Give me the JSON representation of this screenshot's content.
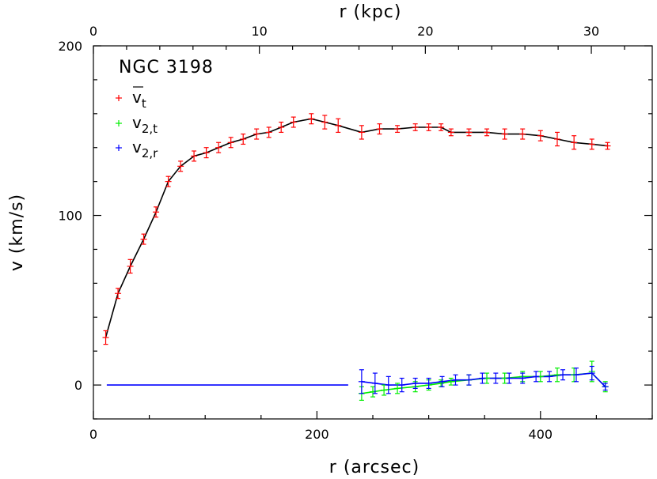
{
  "chart_data": {
    "type": "line",
    "title": "NGC 3198",
    "xlabel": "r (arcsec)",
    "ylabel": "v (km/s)",
    "x2label": "r (kpc)",
    "xlim": [
      0,
      500
    ],
    "ylim": [
      -20,
      200
    ],
    "x2lim": [
      0,
      33.67
    ],
    "xticks": [
      0,
      200,
      400
    ],
    "yticks": [
      0,
      100,
      200
    ],
    "x2ticks": [
      0,
      10,
      20,
      30
    ],
    "xtick_labels": [
      "0",
      "200",
      "400"
    ],
    "ytick_labels": [
      "0",
      "100",
      "200"
    ],
    "x2tick_labels": [
      "0",
      "10",
      "20",
      "30"
    ],
    "legend": {
      "placement": "top-left",
      "entries": [
        {
          "main": "v",
          "sub": "t",
          "overbar": true
        },
        {
          "main": "v",
          "sub": "2,t",
          "overbar": false
        },
        {
          "main": "v",
          "sub": "2,r",
          "overbar": false
        }
      ]
    },
    "colors": {
      "vt": "#ff0000",
      "v2t": "#00ee00",
      "v2r": "#0000ff",
      "model": "#000000",
      "axes": "#000000"
    },
    "series": [
      {
        "key": "vt",
        "x": [
          11,
          22,
          33,
          45,
          56,
          67,
          78,
          90,
          101,
          112,
          123,
          134,
          146,
          157,
          168,
          179,
          195,
          207,
          219,
          240,
          256,
          272,
          288,
          300,
          311,
          320,
          336,
          352,
          368,
          384,
          400,
          415,
          430,
          446,
          460
        ],
        "y": [
          28,
          54,
          70,
          86,
          102,
          120,
          129,
          135,
          137,
          140,
          143,
          145,
          148,
          149,
          152,
          155,
          157,
          155,
          153,
          149,
          151,
          151,
          152,
          152,
          152,
          149,
          149,
          149,
          148,
          148,
          147,
          145,
          143,
          142,
          141
        ],
        "err": [
          4,
          3,
          4,
          3,
          3,
          3,
          3,
          3,
          3,
          3,
          3,
          3,
          3,
          3,
          3,
          3,
          3,
          4,
          4,
          4,
          3,
          2,
          2,
          2,
          2,
          2,
          2,
          2,
          3,
          3,
          3,
          4,
          4,
          3,
          2
        ]
      },
      {
        "key": "v2t",
        "x": [
          240,
          250,
          260,
          272,
          288,
          300,
          311,
          320,
          336,
          352,
          368,
          384,
          400,
          415,
          430,
          446,
          458
        ],
        "y": [
          -5,
          -4,
          -3,
          -2,
          -1,
          0,
          1,
          2,
          3,
          4,
          4,
          5,
          5,
          6,
          6,
          8,
          -1
        ],
        "err": [
          4,
          3,
          3,
          3,
          3,
          3,
          2,
          2,
          3,
          3,
          3,
          3,
          3,
          4,
          4,
          6,
          3
        ]
      },
      {
        "key": "v2r",
        "x": [
          240,
          252,
          264,
          276,
          288,
          300,
          312,
          324,
          336,
          348,
          360,
          372,
          384,
          396,
          408,
          420,
          432,
          446,
          458
        ],
        "y": [
          2,
          1,
          0,
          0,
          1,
          1,
          2,
          3,
          3,
          4,
          4,
          4,
          4,
          5,
          5,
          6,
          6,
          7,
          -1
        ],
        "err": [
          7,
          6,
          5,
          4,
          3,
          3,
          3,
          3,
          3,
          3,
          3,
          3,
          3,
          3,
          3,
          3,
          4,
          4,
          2
        ]
      }
    ],
    "model_curves": [
      {
        "key": "vt_model",
        "x": [
          11,
          22,
          33,
          45,
          56,
          67,
          78,
          90,
          101,
          112,
          123,
          134,
          146,
          157,
          168,
          179,
          195,
          207,
          219,
          240,
          256,
          272,
          288,
          300,
          311,
          320,
          336,
          352,
          368,
          384,
          400,
          415,
          430,
          446,
          460
        ],
        "y": [
          28,
          54,
          70,
          86,
          102,
          120,
          129,
          135,
          137,
          140,
          143,
          145,
          148,
          149,
          152,
          155,
          157,
          155,
          153,
          149,
          151,
          151,
          152,
          152,
          152,
          149,
          149,
          149,
          148,
          148,
          147,
          145,
          143,
          142,
          141
        ],
        "color": "#000000"
      },
      {
        "key": "v2t_model",
        "x": [
          240,
          250,
          260,
          272,
          288,
          300,
          311,
          320,
          336,
          352,
          368,
          384,
          400,
          415,
          430,
          446,
          458
        ],
        "y": [
          -5,
          -4,
          -3,
          -2,
          -1,
          0,
          1,
          2,
          3,
          4,
          4,
          5,
          5,
          6,
          6,
          7,
          -1
        ],
        "color": "#00ee00"
      },
      {
        "key": "v2r_model",
        "x": [
          12,
          228,
          240,
          252,
          264,
          276,
          288,
          300,
          312,
          324,
          336,
          348,
          360,
          372,
          384,
          396,
          408,
          420,
          432,
          446,
          458
        ],
        "y": [
          0,
          0,
          2,
          1,
          0,
          0,
          1,
          1,
          2,
          3,
          3,
          4,
          4,
          4,
          4,
          5,
          5,
          6,
          6,
          7,
          -1
        ],
        "color": "#0000ff",
        "gap_after_index": 1
      }
    ]
  }
}
